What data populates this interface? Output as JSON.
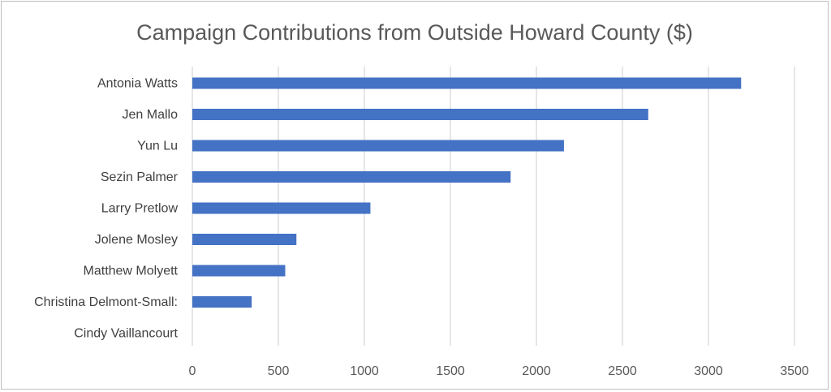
{
  "chart_data": {
    "type": "bar",
    "orientation": "horizontal",
    "title": "Campaign Contributions from Outside Howard County ($)",
    "xlabel": "",
    "ylabel": "",
    "categories": [
      "Antonia Watts",
      "Jen Mallo",
      "Yun Lu",
      "Sezin Palmer",
      "Larry Pretlow",
      "Jolene Mosley",
      "Matthew Molyett",
      "Christina Delmont-Small:",
      "Cindy Vaillancourt"
    ],
    "values": [
      3190,
      2650,
      2160,
      1850,
      1035,
      605,
      540,
      345,
      0
    ],
    "xlim": [
      0,
      3500
    ],
    "xticks": [
      "0",
      "500",
      "1000",
      "1500",
      "2000",
      "2500",
      "3000",
      "3500"
    ],
    "grid": true,
    "legend": "none",
    "bar_color": "#4472c4",
    "grid_color": "#d9d9d9"
  }
}
